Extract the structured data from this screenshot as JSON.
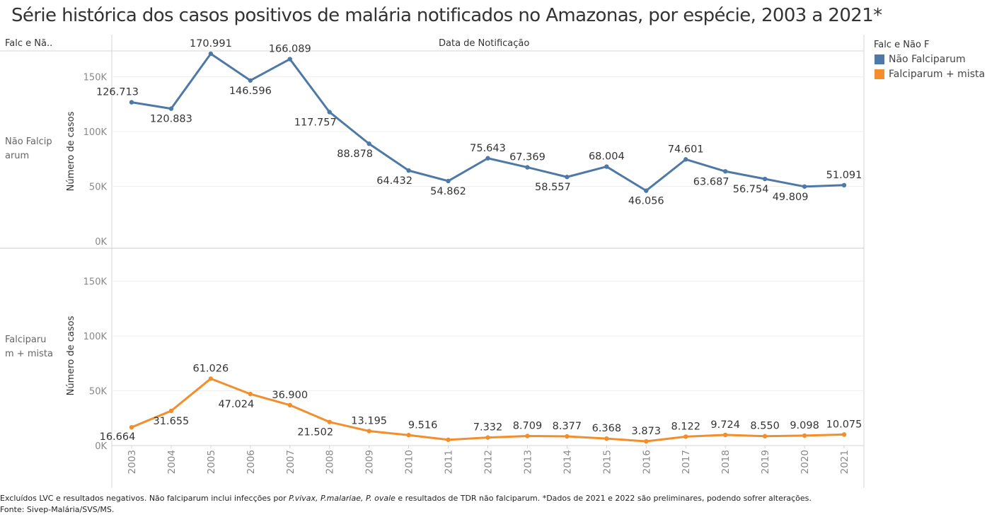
{
  "title": "Série histórica dos casos positivos de malária notificados no Amazonas, por espécie, 2003 a 2021*",
  "header": {
    "row_header": "Falc e Nã..",
    "column_header": "Data de Notificação"
  },
  "legend": {
    "title": "Falc e Não F",
    "items": [
      {
        "label": "Não Falciparum",
        "color": "#4e79a7"
      },
      {
        "label": "Falciparum + mista",
        "color": "#f28e2b"
      }
    ]
  },
  "rows": [
    {
      "label": "Não Falcip\narum"
    },
    {
      "label": "Falciparu\nm + mista"
    }
  ],
  "footer": {
    "text_1": "Excluídos LVC e resultados negativos. Não falciparum inclui infecções por ",
    "italic": "P.vivax, P.malariae, P. ovale",
    "text_2": " e resultados de TDR não falciparum. *Dados de 2021 e 2022 são preliminares, podendo sofrer alterações. Fonte: Sivep-Malária/SVS/MS."
  },
  "chart_data": {
    "type": "line",
    "x": [
      "2003",
      "2004",
      "2005",
      "2006",
      "2007",
      "2008",
      "2009",
      "2010",
      "2011",
      "2012",
      "2013",
      "2014",
      "2015",
      "2016",
      "2017",
      "2018",
      "2019",
      "2020",
      "2021"
    ],
    "ylabel": "Número de casos",
    "ylim": [
      0,
      180000
    ],
    "yticks": [
      0,
      50000,
      100000,
      150000
    ],
    "ytick_labels": [
      "0K",
      "50K",
      "100K",
      "150K"
    ],
    "grid": true,
    "legend_position": "right",
    "series": [
      {
        "name": "Não Falciparum",
        "color": "#4e79a7",
        "values": [
          126713,
          120883,
          170991,
          146596,
          166089,
          117757,
          88878,
          64432,
          54862,
          75643,
          67369,
          58557,
          68004,
          46056,
          74601,
          63687,
          56754,
          49809,
          51091
        ],
        "labels": [
          "126.713",
          "120.883",
          "170.991",
          "146.596",
          "166.089",
          "117.757",
          "88.878",
          "64.432",
          "54.862",
          "75.643",
          "67.369",
          "58.557",
          "68.004",
          "46.056",
          "74.601",
          "63.687",
          "56.754",
          "49.809",
          "51.091"
        ]
      },
      {
        "name": "Falciparum + mista",
        "color": "#f28e2b",
        "values": [
          16664,
          31655,
          61026,
          47024,
          36900,
          21502,
          13195,
          9516,
          5300,
          7332,
          8709,
          8377,
          6368,
          3873,
          8122,
          9724,
          8550,
          9098,
          10075
        ],
        "labels": [
          "16.664",
          "31.655",
          "61.026",
          "47.024",
          "36.900",
          "21.502",
          "13.195",
          "9.516",
          "",
          "7.332",
          "8.709",
          "8.377",
          "6.368",
          "3.873",
          "8.122",
          "9.724",
          "8.550",
          "9.098",
          "10.075"
        ]
      }
    ]
  }
}
